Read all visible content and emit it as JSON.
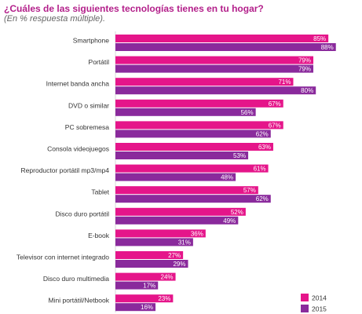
{
  "title": "¿Cuáles de las siguientes tecnologías tienes en tu hogar?",
  "subtitle": "(En % respuesta múltiple).",
  "colors": {
    "s2014": "#e5158a",
    "s2015": "#8a2a9c",
    "label": "#333333",
    "bar_text": "#ffffff"
  },
  "chart_data": {
    "type": "bar",
    "orientation": "horizontal",
    "value_suffix": "%",
    "categories": [
      "Smartphone",
      "Portátil",
      "Internet banda ancha",
      "DVD o similar",
      "PC sobremesa",
      "Consola videojuegos",
      "Reproductor portátil mp3/mp4",
      "Tablet",
      "Disco duro portátil",
      "E-book",
      "Televisor con internet integrado",
      "Disco duro multimedia",
      "Mini portátil/Netbook"
    ],
    "series": [
      {
        "name": "2014",
        "values": [
          85,
          79,
          71,
          67,
          67,
          63,
          61,
          57,
          52,
          36,
          27,
          24,
          23
        ]
      },
      {
        "name": "2015",
        "values": [
          88,
          79,
          80,
          56,
          62,
          53,
          48,
          62,
          49,
          31,
          29,
          17,
          16
        ]
      }
    ],
    "xlim": [
      0,
      100
    ],
    "grid": false,
    "legend_position": "bottom-right"
  }
}
